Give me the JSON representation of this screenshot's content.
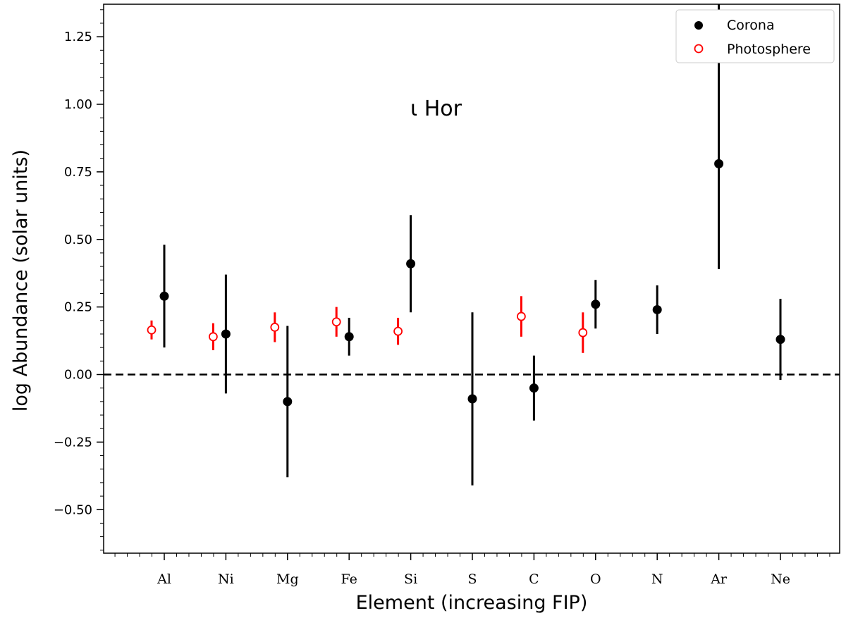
{
  "chart_data": {
    "type": "scatter",
    "annotation": "ι Hor",
    "xlabel": "Element (increasing FIP)",
    "ylabel": "log Abundance (solar units)",
    "categories": [
      "Al",
      "Ni",
      "Mg",
      "Fe",
      "Si",
      "S",
      "C",
      "O",
      "N",
      "Ar",
      "Ne"
    ],
    "ylim": [
      -0.65,
      1.37
    ],
    "yticks": [
      -0.5,
      -0.25,
      0.0,
      0.25,
      0.5,
      0.75,
      1.0,
      1.25
    ],
    "ytick_labels": [
      "−0.50",
      "−0.25",
      "0.00",
      "0.25",
      "0.50",
      "0.75",
      "1.00",
      "1.25"
    ],
    "reference_line": {
      "y": 0.0,
      "style": "dashed"
    },
    "legend_position": "top-right",
    "series": [
      {
        "name": "Corona",
        "marker": "filled-circle",
        "color": "#000000",
        "points": [
          {
            "x": "Al",
            "y": 0.29,
            "err_low": 0.1,
            "err_high": 0.48
          },
          {
            "x": "Ni",
            "y": 0.15,
            "err_low": -0.07,
            "err_high": 0.37
          },
          {
            "x": "Mg",
            "y": -0.1,
            "err_low": -0.38,
            "err_high": 0.18
          },
          {
            "x": "Fe",
            "y": 0.14,
            "err_low": 0.07,
            "err_high": 0.21
          },
          {
            "x": "Si",
            "y": 0.41,
            "err_low": 0.23,
            "err_high": 0.59
          },
          {
            "x": "S",
            "y": -0.09,
            "err_low": -0.41,
            "err_high": 0.23
          },
          {
            "x": "C",
            "y": -0.05,
            "err_low": -0.17,
            "err_high": 0.07
          },
          {
            "x": "O",
            "y": 0.26,
            "err_low": 0.17,
            "err_high": 0.35
          },
          {
            "x": "N",
            "y": 0.24,
            "err_low": 0.15,
            "err_high": 0.33
          },
          {
            "x": "Ar",
            "y": 0.78,
            "err_low": 0.39,
            "err_high": 1.37
          },
          {
            "x": "Ne",
            "y": 0.13,
            "err_low": -0.02,
            "err_high": 0.28
          }
        ]
      },
      {
        "name": "Photosphere",
        "marker": "open-circle",
        "color": "#ff0000",
        "points": [
          {
            "x": "Al",
            "y": 0.165,
            "err_low": 0.13,
            "err_high": 0.2
          },
          {
            "x": "Ni",
            "y": 0.14,
            "err_low": 0.09,
            "err_high": 0.19
          },
          {
            "x": "Mg",
            "y": 0.175,
            "err_low": 0.12,
            "err_high": 0.23
          },
          {
            "x": "Fe",
            "y": 0.195,
            "err_low": 0.14,
            "err_high": 0.25
          },
          {
            "x": "Si",
            "y": 0.16,
            "err_low": 0.11,
            "err_high": 0.21
          },
          {
            "x": "C",
            "y": 0.215,
            "err_low": 0.14,
            "err_high": 0.29
          },
          {
            "x": "O",
            "y": 0.155,
            "err_low": 0.08,
            "err_high": 0.23
          }
        ]
      }
    ]
  }
}
